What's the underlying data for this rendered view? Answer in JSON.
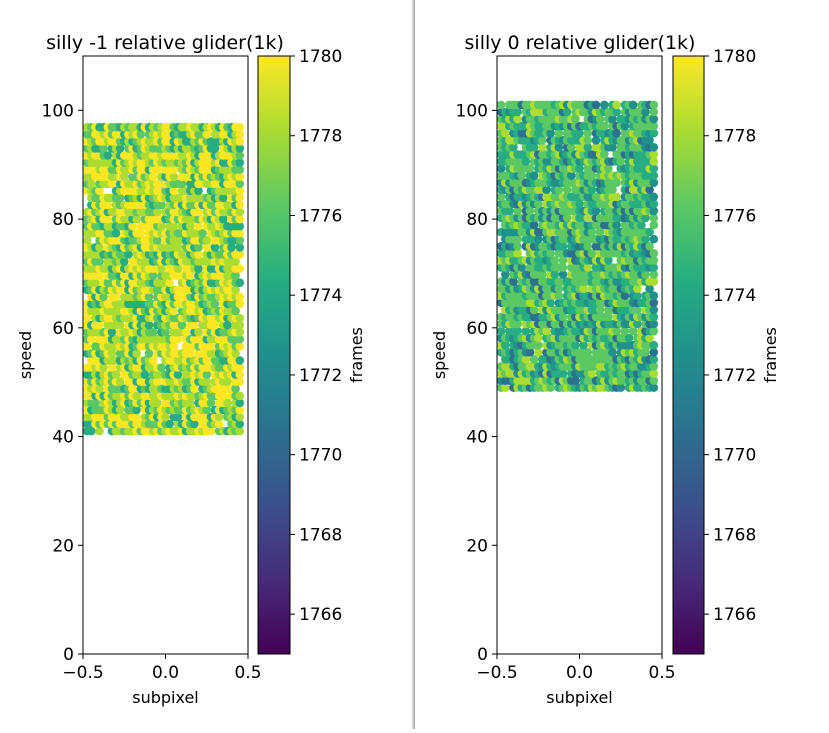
{
  "chart_data": [
    {
      "type": "scatter",
      "title": "silly -1 relative glider(1k)",
      "xlabel": "subpixel",
      "ylabel": "speed",
      "xlim": [
        -0.5,
        0.5
      ],
      "ylim": [
        0,
        110
      ],
      "xticks": [
        "−0.5",
        "0.0",
        "0.5"
      ],
      "yticks": [
        "0",
        "20",
        "40",
        "60",
        "80",
        "100"
      ],
      "colorbar": {
        "label": "frames",
        "range": [
          1765,
          1780
        ],
        "ticks": [
          "1766",
          "1768",
          "1770",
          "1772",
          "1774",
          "1776",
          "1778",
          "1780"
        ],
        "colormap": "viridis"
      },
      "grid": false,
      "x_points": [
        -0.475,
        -0.45,
        -0.425,
        -0.4,
        -0.375,
        -0.35,
        -0.325,
        -0.3,
        -0.275,
        -0.25,
        -0.225,
        -0.2,
        -0.175,
        -0.15,
        -0.125,
        -0.1,
        -0.075,
        -0.05,
        -0.025,
        0.0,
        0.025,
        0.05,
        0.075,
        0.1,
        0.125,
        0.15,
        0.175,
        0.2,
        0.225,
        0.25,
        0.275,
        0.3,
        0.325,
        0.35,
        0.375,
        0.4,
        0.425,
        0.45
      ],
      "y_range": [
        41,
        98
      ],
      "y_step": 1.3,
      "point_count_note_hidden": ""
    },
    {
      "type": "scatter",
      "title": "silly 0 relative glider(1k)",
      "xlabel": "subpixel",
      "ylabel": "speed",
      "xlim": [
        -0.5,
        0.5
      ],
      "ylim": [
        0,
        110
      ],
      "xticks": [
        "−0.5",
        "0.0",
        "0.5"
      ],
      "yticks": [
        "0",
        "20",
        "40",
        "60",
        "80",
        "100"
      ],
      "colorbar": {
        "label": "frames",
        "range": [
          1765,
          1780
        ],
        "ticks": [
          "1766",
          "1768",
          "1770",
          "1772",
          "1774",
          "1776",
          "1778",
          "1780"
        ],
        "colormap": "viridis"
      },
      "grid": false,
      "x_points": [
        -0.475,
        -0.45,
        -0.425,
        -0.4,
        -0.375,
        -0.35,
        -0.325,
        -0.3,
        -0.275,
        -0.25,
        -0.225,
        -0.2,
        -0.175,
        -0.15,
        -0.125,
        -0.1,
        -0.075,
        -0.05,
        -0.025,
        0.0,
        0.025,
        0.05,
        0.075,
        0.1,
        0.125,
        0.15,
        0.175,
        0.2,
        0.225,
        0.25,
        0.275,
        0.3,
        0.325,
        0.35,
        0.375,
        0.4,
        0.425,
        0.45
      ],
      "y_range": [
        49,
        102
      ],
      "y_step": 1.3,
      "point_count_note_hidden": ""
    }
  ]
}
